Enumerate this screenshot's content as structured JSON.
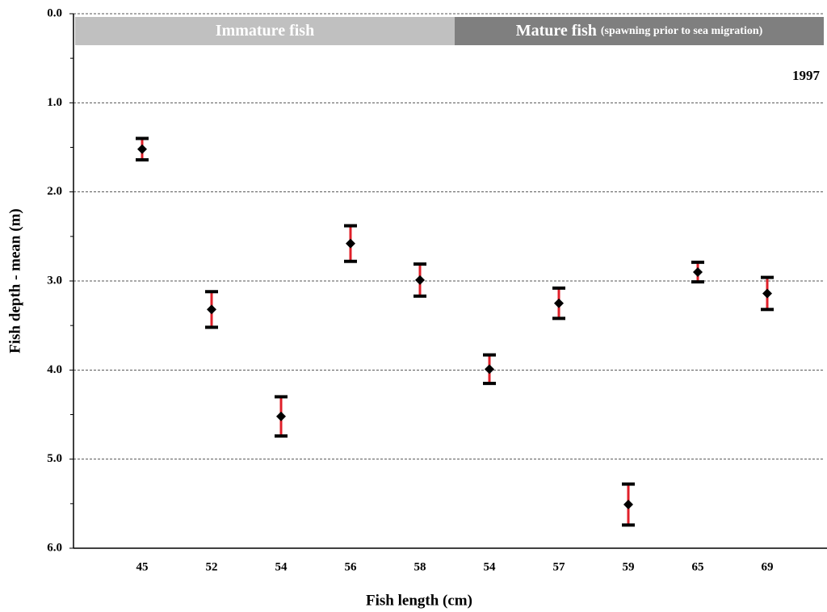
{
  "chart_data": {
    "type": "errorbar",
    "xlabel": "Fish length (cm)",
    "ylabel": "Fish depth - mean (m)",
    "annotation": "1997",
    "groups": [
      {
        "label": "Immature fish",
        "color": "#c0c0c0"
      },
      {
        "label": "Mature fish",
        "sublabel": "(spawning prior to sea migration)",
        "color": "#7f7f7f"
      }
    ],
    "categories": [
      "45",
      "52",
      "54",
      "56",
      "58",
      "54",
      "57",
      "59",
      "65",
      "69"
    ],
    "series": [
      {
        "color": "#000000",
        "error_color": "#e0202a",
        "values": [
          1.52,
          3.32,
          4.52,
          2.58,
          2.99,
          3.99,
          3.25,
          5.51,
          2.9,
          3.14
        ],
        "errors": [
          0.12,
          0.2,
          0.22,
          0.2,
          0.18,
          0.16,
          0.17,
          0.23,
          0.11,
          0.18
        ]
      }
    ],
    "ylim": [
      0,
      6
    ],
    "y_inverted": true,
    "yticks": [
      {
        "value": 0,
        "label": "0.0"
      },
      {
        "value": 1,
        "label": "1.0"
      },
      {
        "value": 2,
        "label": "2.0"
      },
      {
        "value": 3,
        "label": "3.0"
      },
      {
        "value": 4,
        "label": "4.0"
      },
      {
        "value": 5,
        "label": "5.0"
      },
      {
        "value": 6,
        "label": "6.0"
      }
    ],
    "minor_yticks": [
      0.5,
      1.5,
      2.5,
      3.5,
      4.5,
      5.5
    ],
    "grid": true
  }
}
